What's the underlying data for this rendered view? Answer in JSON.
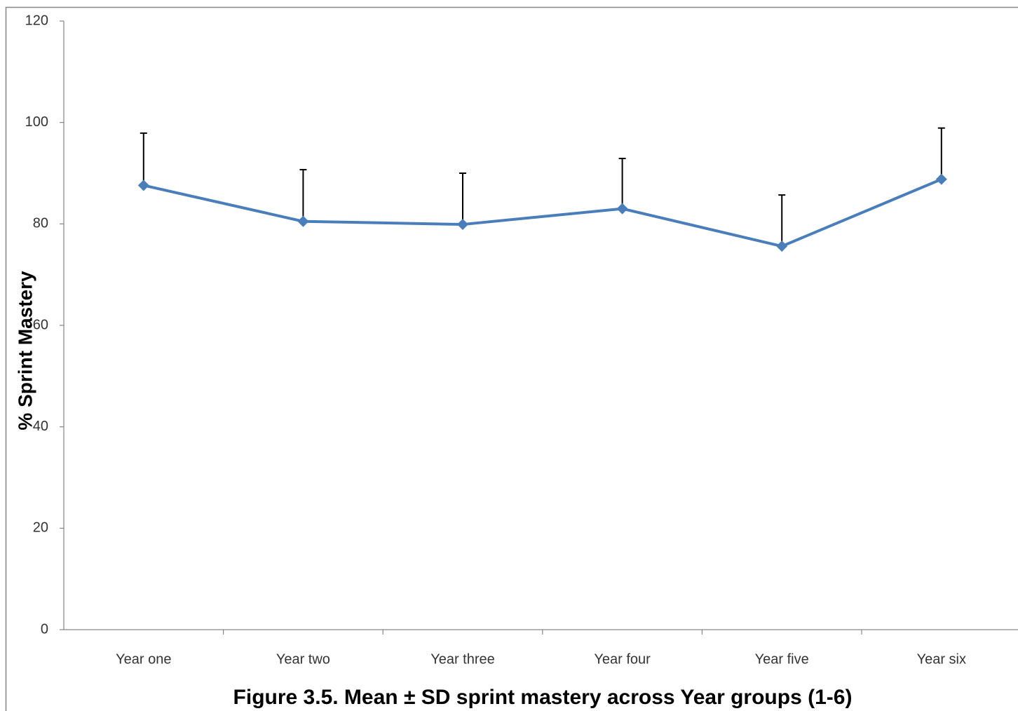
{
  "chart_data": {
    "type": "line",
    "title": "Figure 3.5. Mean ± SD sprint mastery across Year groups (1-6)",
    "y_label": "% Sprint Mastery",
    "categories": [
      "Year one",
      "Year two",
      "Year three",
      "Year four",
      "Year five",
      "Year six"
    ],
    "series": [
      {
        "color": "#4a7ebb",
        "values": [
          87.6,
          80.5,
          79.9,
          83.0,
          75.6,
          88.8
        ],
        "errors": [
          10.3,
          10.2,
          10.1,
          9.9,
          10.1,
          10.1
        ]
      }
    ],
    "ylim": [
      0,
      120
    ],
    "yticks": [
      0,
      20,
      40,
      60,
      80,
      100,
      120
    ],
    "grid": false
  }
}
